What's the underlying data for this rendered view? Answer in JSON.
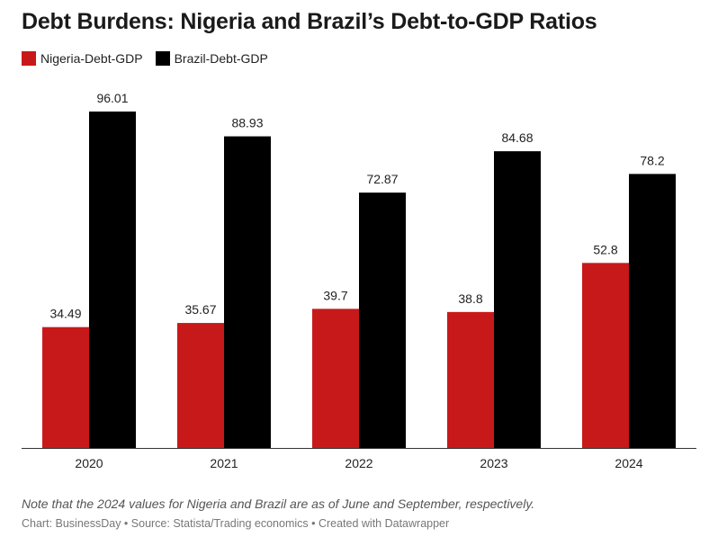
{
  "chart_data": {
    "type": "bar",
    "title": "Debt Burdens: Nigeria and Brazil’s Debt-to-GDP Ratios",
    "categories": [
      "2020",
      "2021",
      "2022",
      "2023",
      "2024"
    ],
    "series": [
      {
        "name": "Nigeria-Debt-GDP",
        "color": "#c8191a",
        "values": [
          34.49,
          35.67,
          39.7,
          38.8,
          52.8
        ],
        "labels": [
          "34.49",
          "35.67",
          "39.7",
          "38.8",
          "52.8"
        ]
      },
      {
        "name": "Brazil-Debt-GDP",
        "color": "#000000",
        "values": [
          96.01,
          88.93,
          72.87,
          84.68,
          78.2
        ],
        "labels": [
          "96.01",
          "88.93",
          "72.87",
          "84.68",
          "78.2"
        ]
      }
    ],
    "ylim": [
      0,
      96.01
    ],
    "grid": false,
    "legend_position": "top-left"
  },
  "note": "Note that the 2024 values for Nigeria and Brazil are as of June and September, respectively.",
  "footer": "Chart: BusinessDay • Source: Statista/Trading economics • Created with Datawrapper"
}
